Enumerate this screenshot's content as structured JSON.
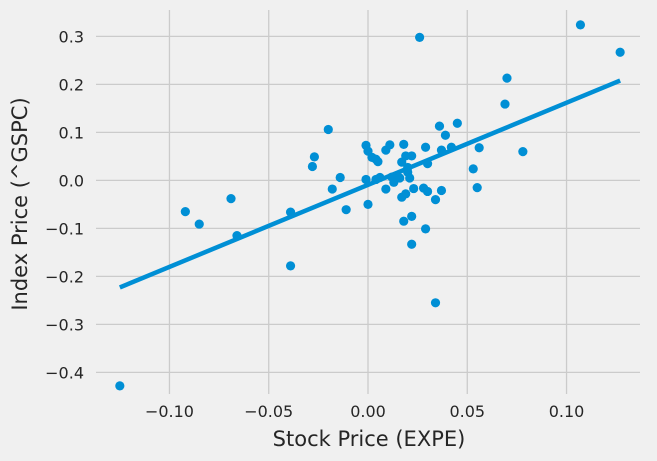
{
  "chart_data": {
    "type": "scatter",
    "title": "",
    "xlabel": "Stock Price (EXPE)",
    "ylabel": "Index Price (^GSPC)",
    "xlim": [
      -0.137,
      0.137
    ],
    "ylim": [
      -0.445,
      0.355
    ],
    "xticks": [
      -0.1,
      -0.05,
      0.0,
      0.05,
      0.1
    ],
    "xtick_labels": [
      "−0.10",
      "−0.05",
      "0.00",
      "0.05",
      "0.10"
    ],
    "yticks": [
      -0.4,
      -0.3,
      -0.2,
      -0.1,
      0.0,
      0.1,
      0.2,
      0.3
    ],
    "ytick_labels": [
      "−0.4",
      "−0.3",
      "−0.2",
      "−0.1",
      "0.0",
      "0.1",
      "0.2",
      "0.3"
    ],
    "grid": true,
    "color": "#008fd5",
    "regression_line": {
      "x": [
        -0.125,
        0.127
      ],
      "y": [
        -0.223,
        0.208
      ]
    },
    "points": [
      [
        -0.125,
        -0.428
      ],
      [
        -0.092,
        -0.065
      ],
      [
        -0.085,
        -0.091
      ],
      [
        -0.069,
        -0.038
      ],
      [
        -0.066,
        -0.115
      ],
      [
        -0.039,
        -0.066
      ],
      [
        -0.039,
        -0.178
      ],
      [
        -0.028,
        0.029
      ],
      [
        -0.027,
        0.049
      ],
      [
        -0.02,
        0.106
      ],
      [
        -0.018,
        -0.018
      ],
      [
        -0.014,
        0.006
      ],
      [
        -0.011,
        -0.061
      ],
      [
        -0.001,
        0.073
      ],
      [
        -0.001,
        0.002
      ],
      [
        0.0,
        0.061
      ],
      [
        0.0,
        -0.05
      ],
      [
        0.002,
        0.048
      ],
      [
        0.004,
        0.044
      ],
      [
        0.004,
        0.002
      ],
      [
        0.005,
        0.039
      ],
      [
        0.006,
        0.006
      ],
      [
        0.009,
        -0.018
      ],
      [
        0.009,
        0.063
      ],
      [
        0.011,
        0.074
      ],
      [
        0.012,
        0.007
      ],
      [
        0.013,
        -0.004
      ],
      [
        0.016,
        0.005
      ],
      [
        0.017,
        0.038
      ],
      [
        0.017,
        -0.035
      ],
      [
        0.018,
        0.075
      ],
      [
        0.018,
        -0.085
      ],
      [
        0.019,
        -0.028
      ],
      [
        0.019,
        0.051
      ],
      [
        0.02,
        0.017
      ],
      [
        0.02,
        0.027
      ],
      [
        0.021,
        0.005
      ],
      [
        0.022,
        -0.075
      ],
      [
        0.022,
        0.051
      ],
      [
        0.022,
        -0.133
      ],
      [
        0.023,
        -0.017
      ],
      [
        0.026,
        0.298
      ],
      [
        0.028,
        -0.016
      ],
      [
        0.029,
        0.069
      ],
      [
        0.029,
        -0.101
      ],
      [
        0.03,
        0.035
      ],
      [
        0.03,
        -0.023
      ],
      [
        0.034,
        -0.04
      ],
      [
        0.034,
        -0.255
      ],
      [
        0.036,
        0.113
      ],
      [
        0.037,
        0.063
      ],
      [
        0.037,
        -0.021
      ],
      [
        0.039,
        0.094
      ],
      [
        0.042,
        0.069
      ],
      [
        0.045,
        0.119
      ],
      [
        0.053,
        0.024
      ],
      [
        0.055,
        -0.015
      ],
      [
        0.056,
        0.068
      ],
      [
        0.069,
        0.159
      ],
      [
        0.07,
        0.213
      ],
      [
        0.078,
        0.06
      ],
      [
        0.107,
        0.324
      ],
      [
        0.127,
        0.267
      ]
    ]
  }
}
